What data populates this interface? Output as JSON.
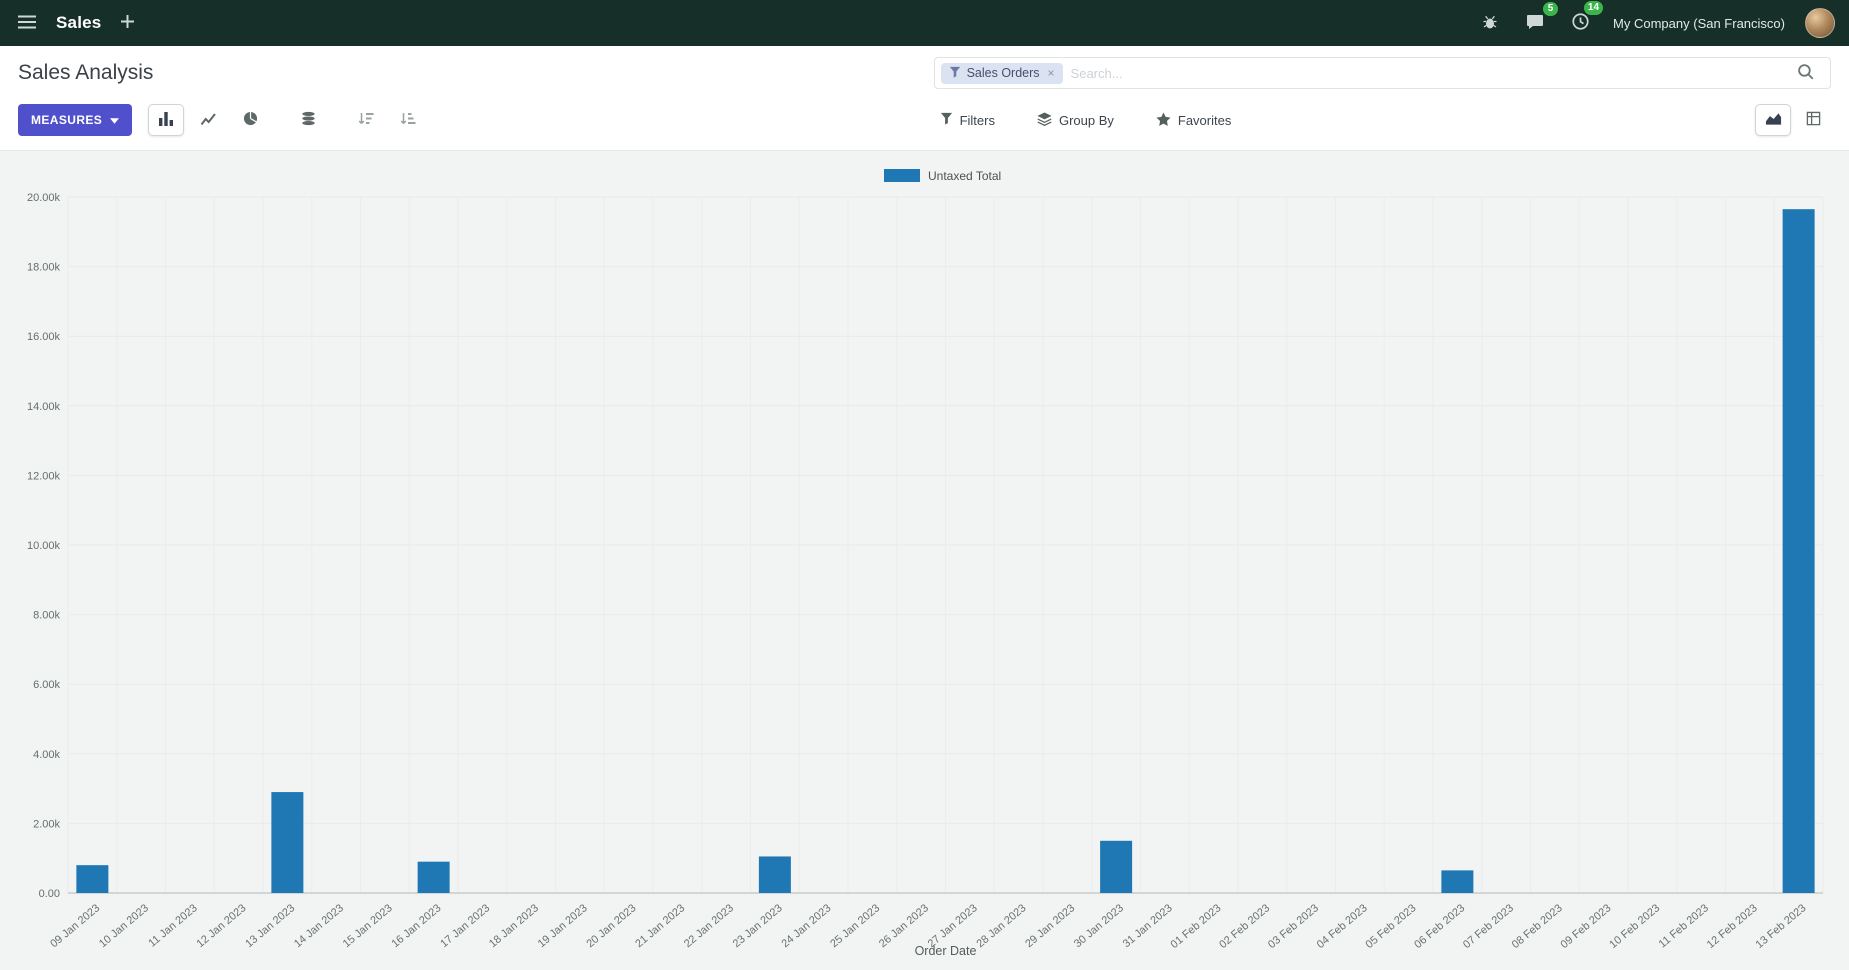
{
  "colors": {
    "accent": "#5050cc",
    "bar": "#1f77b4",
    "badge_green": "#3bb54a",
    "navbar_bg": "#163029"
  },
  "navbar": {
    "app_name": "Sales",
    "plus": "+",
    "badges": {
      "messages": "5",
      "activities": "14"
    },
    "company": "My Company (San Francisco)"
  },
  "control_panel": {
    "title": "Sales Analysis",
    "measures_label": "MEASURES",
    "search": {
      "facet_label": "Sales Orders",
      "facet_remove": "×",
      "placeholder": "Search..."
    },
    "filters_label": "Filters",
    "group_by_label": "Group By",
    "favorites_label": "Favorites"
  },
  "chart_data": {
    "type": "bar",
    "title": "",
    "xlabel": "Order Date",
    "ylabel": "",
    "ylim": [
      0,
      20000
    ],
    "ytick_step": 2000,
    "grid": true,
    "legend_position": "top",
    "categories": [
      "09 Jan 2023",
      "10 Jan 2023",
      "11 Jan 2023",
      "12 Jan 2023",
      "13 Jan 2023",
      "14 Jan 2023",
      "15 Jan 2023",
      "16 Jan 2023",
      "17 Jan 2023",
      "18 Jan 2023",
      "19 Jan 2023",
      "20 Jan 2023",
      "21 Jan 2023",
      "22 Jan 2023",
      "23 Jan 2023",
      "24 Jan 2023",
      "25 Jan 2023",
      "26 Jan 2023",
      "27 Jan 2023",
      "28 Jan 2023",
      "29 Jan 2023",
      "30 Jan 2023",
      "31 Jan 2023",
      "01 Feb 2023",
      "02 Feb 2023",
      "03 Feb 2023",
      "04 Feb 2023",
      "05 Feb 2023",
      "06 Feb 2023",
      "07 Feb 2023",
      "08 Feb 2023",
      "09 Feb 2023",
      "10 Feb 2023",
      "11 Feb 2023",
      "12 Feb 2023",
      "13 Feb 2023"
    ],
    "series": [
      {
        "name": "Untaxed Total",
        "color": "#1f77b4",
        "values": [
          800,
          0,
          0,
          0,
          2900,
          0,
          0,
          900,
          0,
          0,
          0,
          0,
          0,
          0,
          1050,
          0,
          0,
          0,
          0,
          0,
          0,
          1500,
          0,
          0,
          0,
          0,
          0,
          0,
          650,
          0,
          0,
          0,
          0,
          0,
          0,
          19650
        ]
      }
    ]
  }
}
